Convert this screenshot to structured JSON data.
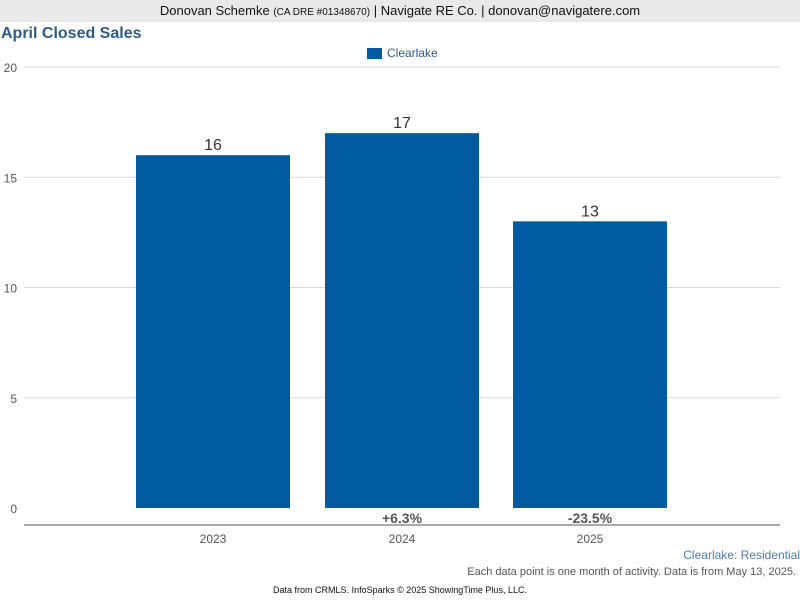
{
  "header": {
    "agent_name": "Donovan Schemke",
    "dre": "(CA DRE #01348670)",
    "company": "Navigate RE Co.",
    "email": "donovan@navigatere.com",
    "separator": "|"
  },
  "colors": {
    "bar": "#005aa0",
    "title": "#2e5a86",
    "grid": "#d9d9d9",
    "axis": "#555555"
  },
  "footer": {
    "area_label": "Clearlake: Residential",
    "note": "Each data point is one month of activity. Data is from May 13, 2025.",
    "source": "Data from CRMLS. InfoSparks © 2025 ShowingTime Plus, LLC."
  },
  "chart_data": {
    "type": "bar",
    "title": "April Closed Sales",
    "categories": [
      "2023",
      "2024",
      "2025"
    ],
    "series": [
      {
        "name": "Clearlake",
        "values": [
          16,
          17,
          13
        ]
      }
    ],
    "changes": [
      "",
      "+6.3%",
      "-23.5%"
    ],
    "ylim": [
      0,
      20
    ],
    "yticks": [
      0,
      5,
      10,
      15,
      20
    ],
    "grid": true,
    "legend_position": "top-center",
    "xlabel": "",
    "ylabel": ""
  }
}
